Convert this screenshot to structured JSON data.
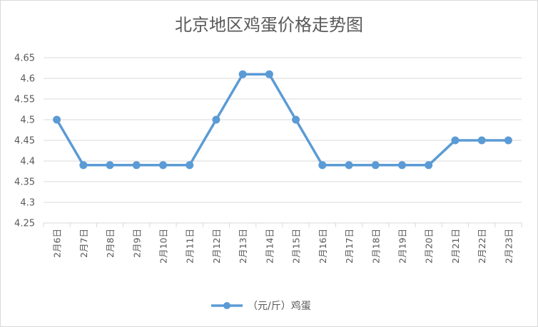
{
  "chart_data": {
    "type": "line",
    "title": "北京地区鸡蛋价格走势图",
    "xlabel": "",
    "ylabel": "",
    "categories": [
      "2月6日",
      "2月7日",
      "2月8日",
      "2月9日",
      "2月10日",
      "2月11日",
      "2月12日",
      "2月13日",
      "2月14日",
      "2月15日",
      "2月16日",
      "2月17日",
      "2月18日",
      "2月19日",
      "2月20日",
      "2月21日",
      "2月22日",
      "2月23日"
    ],
    "series": [
      {
        "name": "（元/斤）鸡蛋",
        "values": [
          4.5,
          4.39,
          4.39,
          4.39,
          4.39,
          4.39,
          4.5,
          4.61,
          4.61,
          4.5,
          4.39,
          4.39,
          4.39,
          4.39,
          4.39,
          4.45,
          4.45,
          4.45
        ]
      }
    ],
    "ylim": [
      4.25,
      4.65
    ],
    "yticks": [
      "4.25",
      "4.3",
      "4.35",
      "4.4",
      "4.45",
      "4.5",
      "4.55",
      "4.6",
      "4.65"
    ],
    "grid": true,
    "legend": "bottom",
    "colors": {
      "series": "#5b9bd5",
      "grid": "#d9d9d9",
      "text": "#595959"
    }
  }
}
